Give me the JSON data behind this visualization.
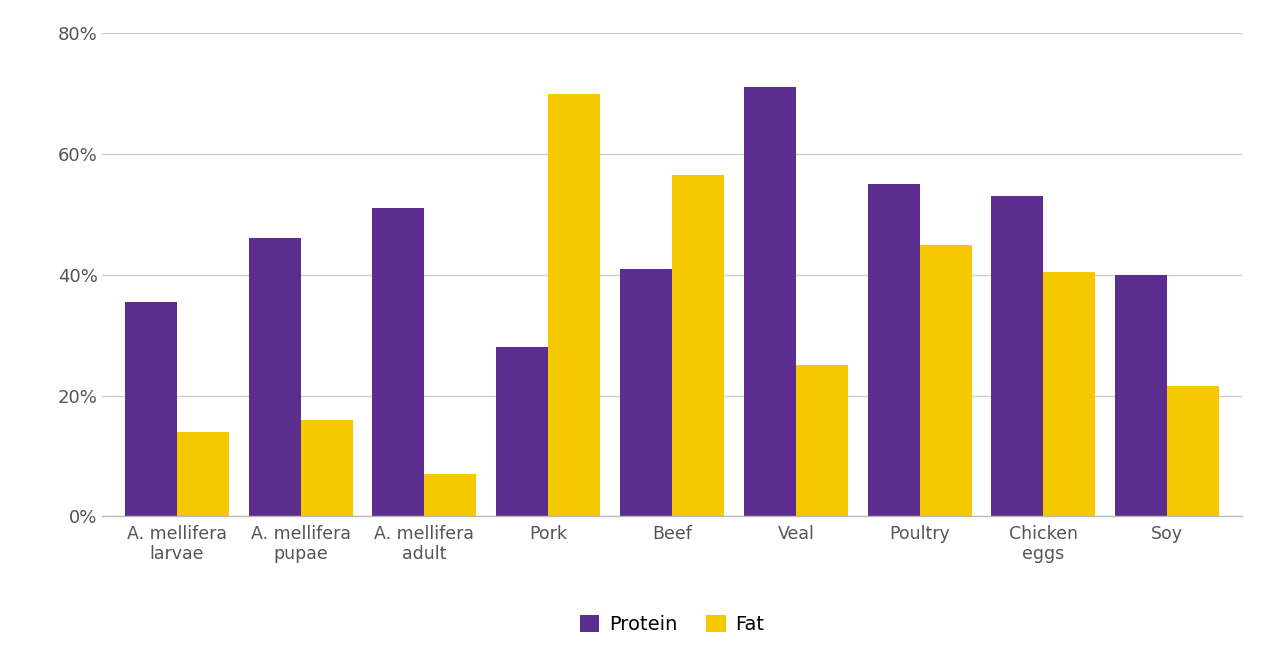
{
  "categories": [
    "A. mellifera\nlarvae",
    "A. mellifera\npupae",
    "A. mellifera\nadult",
    "Pork",
    "Beef",
    "Veal",
    "Poultry",
    "Chicken\neggs",
    "Soy"
  ],
  "protein": [
    35.5,
    46,
    51,
    28,
    41,
    71,
    55,
    53,
    40
  ],
  "fat": [
    14,
    16,
    7,
    70,
    56.5,
    25,
    45,
    40.5,
    21.5
  ],
  "protein_color": "#5B2D8E",
  "fat_color": "#F5C800",
  "ylim": [
    0,
    80
  ],
  "yticks": [
    0,
    20,
    40,
    60,
    80
  ],
  "bar_width": 0.42,
  "background_color": "#FFFFFF",
  "grid_color": "#CCCCCC",
  "legend_labels": [
    "Protein",
    "Fat"
  ]
}
